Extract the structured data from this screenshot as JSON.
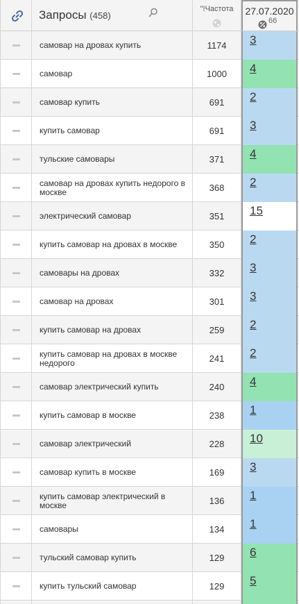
{
  "header": {
    "queries_title": "Запросы",
    "queries_count": "(458)",
    "frequency_title": "\"!Частота",
    "date_title": "27.07.2020",
    "positions_count": "66"
  },
  "colors": {
    "blue": "#b9d9f0",
    "green": "#93e2b1",
    "light_green": "#c7f0d6",
    "white": "#ffffff"
  },
  "rows": [
    {
      "query": "самовар на дровах купить",
      "freq": "1174",
      "pos": "3",
      "color": "#b9d9f0"
    },
    {
      "query": "самовар",
      "freq": "1000",
      "pos": "4",
      "color": "#93e2b1"
    },
    {
      "query": "самовар купить",
      "freq": "691",
      "pos": "2",
      "color": "#b9d9f0"
    },
    {
      "query": "купить самовар",
      "freq": "691",
      "pos": "3",
      "color": "#b9d9f0"
    },
    {
      "query": "тульские самовары",
      "freq": "371",
      "pos": "4",
      "color": "#93e2b1"
    },
    {
      "query": "самовар на дровах купить недорого в москве",
      "freq": "368",
      "pos": "2",
      "color": "#b9d9f0"
    },
    {
      "query": "электрический самовар",
      "freq": "351",
      "pos": "15",
      "color": "#ffffff"
    },
    {
      "query": "купить самовар на дровах в москве",
      "freq": "350",
      "pos": "2",
      "color": "#b9d9f0"
    },
    {
      "query": "самовары на дровах",
      "freq": "332",
      "pos": "3",
      "color": "#b9d9f0"
    },
    {
      "query": "самовар на дровах",
      "freq": "301",
      "pos": "3",
      "color": "#b9d9f0"
    },
    {
      "query": "купить самовар на дровах",
      "freq": "259",
      "pos": "2",
      "color": "#b9d9f0"
    },
    {
      "query": "купить самовар на дровах в москве недорого",
      "freq": "241",
      "pos": "2",
      "color": "#b9d9f0"
    },
    {
      "query": "самовар электрический купить",
      "freq": "240",
      "pos": "4",
      "color": "#93e2b1"
    },
    {
      "query": "купить самовар в москве",
      "freq": "238",
      "pos": "1",
      "color": "#a9d2f2"
    },
    {
      "query": "самовар электрический",
      "freq": "228",
      "pos": "10",
      "color": "#c7f0d6"
    },
    {
      "query": "самовар купить в москве",
      "freq": "169",
      "pos": "3",
      "color": "#b9d9f0"
    },
    {
      "query": "купить самовар электрический в москве",
      "freq": "136",
      "pos": "1",
      "color": "#a9d2f2"
    },
    {
      "query": "самовары",
      "freq": "134",
      "pos": "1",
      "color": "#a9d2f2"
    },
    {
      "query": "тульский самовар купить",
      "freq": "129",
      "pos": "6",
      "color": "#93e2b1"
    },
    {
      "query": "купить тульский самовар",
      "freq": "129",
      "pos": "5",
      "color": "#93e2b1"
    },
    {
      "query": "",
      "freq": "",
      "pos": "",
      "color": "#93e2b1"
    }
  ]
}
